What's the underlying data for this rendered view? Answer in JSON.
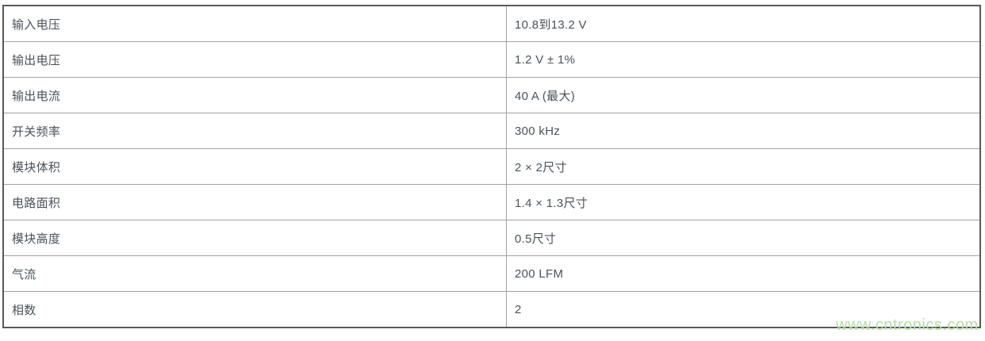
{
  "table": {
    "rows": [
      {
        "label": "输入电压",
        "value": "10.8到13.2 V"
      },
      {
        "label": "输出电压",
        "value": "1.2 V ± 1%"
      },
      {
        "label": "输出电流",
        "value": "40 A (最大)"
      },
      {
        "label": "开关频率",
        "value": "300 kHz"
      },
      {
        "label": "模块体积",
        "value": "2 × 2尺寸"
      },
      {
        "label": "电路面积",
        "value": "1.4 × 1.3尺寸"
      },
      {
        "label": "模块高度",
        "value": "0.5尺寸"
      },
      {
        "label": "气流",
        "value": "200 LFM"
      },
      {
        "label": "相数",
        "value": "2"
      }
    ]
  },
  "watermark": {
    "text": "www.cntronics.com",
    "color": "#b5dfa5"
  },
  "colors": {
    "outer_border": "#585858",
    "inner_border": "#a2a2a2",
    "cell_text": "#4a525b",
    "background": "#ffffff"
  }
}
